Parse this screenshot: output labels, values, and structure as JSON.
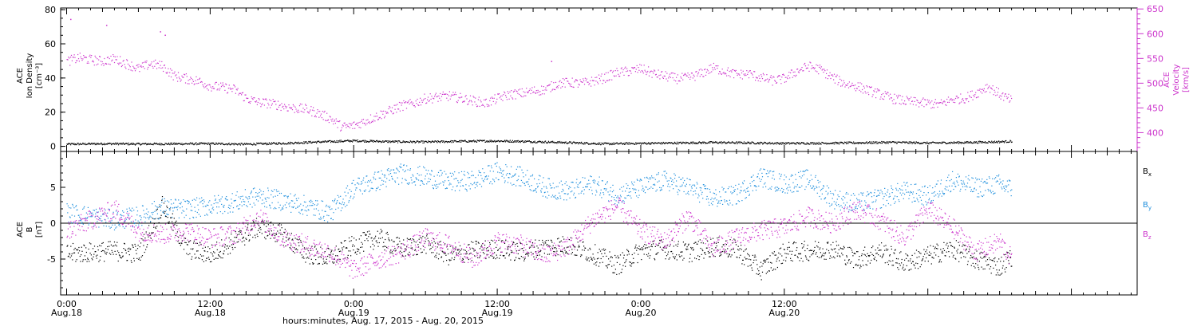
{
  "chart_data": [
    {
      "type": "scatter",
      "panel": "top",
      "left_axis": {
        "label_lines": [
          "ACE",
          "Ion Density",
          "[cm⁻³]"
        ],
        "ylim": [
          -3,
          81
        ],
        "ticks": [
          0,
          20,
          40,
          60,
          80
        ],
        "tick_labels": [
          "0",
          "20",
          "40",
          "60",
          "80"
        ],
        "color": "#000000"
      },
      "right_axis": {
        "label_lines": [
          "ACE",
          "Velocity",
          "[km/s]"
        ],
        "ylim": [
          362,
          652
        ],
        "ticks": [
          400,
          450,
          500,
          550,
          600,
          650
        ],
        "tick_labels": [
          "400",
          "450",
          "500",
          "550",
          "600",
          "650"
        ],
        "color": "#cc33cc"
      },
      "series": [
        {
          "name": "Ion Density",
          "axis": "left",
          "color": "#000000",
          "points": [
            [
              0,
              1.5
            ],
            [
              3,
              1.8
            ],
            [
              6,
              1.6
            ],
            [
              9,
              1.7
            ],
            [
              12,
              1.8
            ],
            [
              15,
              1.5
            ],
            [
              18,
              2.0
            ],
            [
              21,
              2.8
            ],
            [
              24,
              3.5
            ],
            [
              27,
              3.0
            ],
            [
              30,
              2.8
            ],
            [
              33,
              3.2
            ],
            [
              36,
              3.4
            ],
            [
              39,
              3.0
            ],
            [
              42,
              2.4
            ],
            [
              45,
              1.7
            ],
            [
              48,
              2.0
            ],
            [
              51,
              2.2
            ],
            [
              54,
              2.5
            ],
            [
              57,
              2.3
            ],
            [
              60,
              2.0
            ],
            [
              63,
              2.1
            ],
            [
              66,
              2.3
            ],
            [
              69,
              2.6
            ],
            [
              72,
              2.2
            ],
            [
              75,
              2.5
            ],
            [
              78,
              2.9
            ],
            [
              79,
              3.2
            ]
          ]
        },
        {
          "name": "Velocity",
          "axis": "right",
          "color": "#cc33cc",
          "points": [
            [
              0,
              545
            ],
            [
              1,
              552
            ],
            [
              2,
              548
            ],
            [
              3,
              545
            ],
            [
              4,
              550
            ],
            [
              5,
              540
            ],
            [
              6,
              530
            ],
            [
              7,
              540
            ],
            [
              8,
              535
            ],
            [
              9,
              515
            ],
            [
              10,
              510
            ],
            [
              11,
              505
            ],
            [
              12,
              495
            ],
            [
              13,
              492
            ],
            [
              14,
              488
            ],
            [
              15,
              470
            ],
            [
              16,
              462
            ],
            [
              17,
              460
            ],
            [
              18,
              455
            ],
            [
              19,
              450
            ],
            [
              20,
              448
            ],
            [
              21,
              440
            ],
            [
              22,
              430
            ],
            [
              23,
              412
            ],
            [
              24,
              415
            ],
            [
              25,
              425
            ],
            [
              26,
              435
            ],
            [
              27,
              445
            ],
            [
              28,
              455
            ],
            [
              29,
              460
            ],
            [
              30,
              470
            ],
            [
              31,
              472
            ],
            [
              32,
              475
            ],
            [
              33,
              470
            ],
            [
              34,
              465
            ],
            [
              35,
              460
            ],
            [
              36,
              470
            ],
            [
              37,
              478
            ],
            [
              38,
              480
            ],
            [
              39,
              485
            ],
            [
              40,
              488
            ],
            [
              41,
              500
            ],
            [
              42,
              502
            ],
            [
              43,
              500
            ],
            [
              44,
              505
            ],
            [
              45,
              512
            ],
            [
              46,
              522
            ],
            [
              47,
              525
            ],
            [
              48,
              530
            ],
            [
              49,
              520
            ],
            [
              50,
              515
            ],
            [
              51,
              510
            ],
            [
              52,
              512
            ],
            [
              53,
              520
            ],
            [
              54,
              532
            ],
            [
              55,
              525
            ],
            [
              56,
              518
            ],
            [
              57,
              520
            ],
            [
              58,
              512
            ],
            [
              59,
              506
            ],
            [
              60,
              510
            ],
            [
              61,
              525
            ],
            [
              62,
              535
            ],
            [
              63,
              528
            ],
            [
              64,
              512
            ],
            [
              65,
              500
            ],
            [
              66,
              495
            ],
            [
              67,
              486
            ],
            [
              68,
              478
            ],
            [
              69,
              470
            ],
            [
              70,
              465
            ],
            [
              71,
              462
            ],
            [
              72,
              460
            ],
            [
              73,
              458
            ],
            [
              74,
              468
            ],
            [
              75,
              470
            ],
            [
              76,
              480
            ],
            [
              77,
              495
            ],
            [
              78,
              478
            ],
            [
              79,
              465
            ]
          ],
          "spikes": [
            [
              0.3,
              630
            ],
            [
              3.3,
              618
            ],
            [
              7.8,
              605
            ],
            [
              8.2,
              598
            ],
            [
              40.5,
              545
            ]
          ]
        }
      ]
    },
    {
      "type": "scatter",
      "panel": "bottom",
      "axis": {
        "label_lines": [
          "ACE",
          "B",
          "[nT]"
        ],
        "ylim": [
          -10,
          10
        ],
        "ticks": [
          -5,
          0,
          5
        ],
        "tick_labels": [
          "-5",
          "0",
          "5"
        ],
        "color": "#000000"
      },
      "zero_line": 0,
      "series": [
        {
          "name": "B",
          "subscript": "x",
          "color": "#000000",
          "points": [
            [
              0,
              -4.2
            ],
            [
              2,
              -4.0
            ],
            [
              4,
              -3.8
            ],
            [
              6,
              -4.2
            ],
            [
              8,
              2.5
            ],
            [
              10,
              -3.5
            ],
            [
              12,
              -4.3
            ],
            [
              14,
              -2.5
            ],
            [
              16,
              -0.5
            ],
            [
              18,
              -1.5
            ],
            [
              20,
              -4.2
            ],
            [
              22,
              -4.8
            ],
            [
              24,
              -3.0
            ],
            [
              26,
              -2.0
            ],
            [
              28,
              -3.5
            ],
            [
              30,
              -2.8
            ],
            [
              32,
              -4.5
            ],
            [
              34,
              -3.8
            ],
            [
              36,
              -3.5
            ],
            [
              38,
              -4.0
            ],
            [
              40,
              -3.2
            ],
            [
              42,
              -3.0
            ],
            [
              44,
              -4.2
            ],
            [
              46,
              -5.8
            ],
            [
              48,
              -3.8
            ],
            [
              50,
              -3.5
            ],
            [
              52,
              -4.0
            ],
            [
              54,
              -3.2
            ],
            [
              56,
              -3.6
            ],
            [
              58,
              -6.5
            ],
            [
              60,
              -4.0
            ],
            [
              62,
              -3.8
            ],
            [
              64,
              -3.5
            ],
            [
              66,
              -5.0
            ],
            [
              68,
              -3.8
            ],
            [
              70,
              -5.5
            ],
            [
              72,
              -4.5
            ],
            [
              74,
              -3.5
            ],
            [
              76,
              -5.0
            ],
            [
              78,
              -6.0
            ],
            [
              79,
              -4.5
            ]
          ]
        },
        {
          "name": "B",
          "subscript": "y",
          "color": "#1f8fdd",
          "points": [
            [
              0,
              1.5
            ],
            [
              2,
              1.0
            ],
            [
              4,
              0.5
            ],
            [
              6,
              1.0
            ],
            [
              8,
              2.2
            ],
            [
              10,
              2.0
            ],
            [
              12,
              2.5
            ],
            [
              14,
              3.0
            ],
            [
              16,
              3.8
            ],
            [
              18,
              3.2
            ],
            [
              20,
              2.5
            ],
            [
              22,
              1.5
            ],
            [
              24,
              5.0
            ],
            [
              26,
              6.0
            ],
            [
              28,
              7.0
            ],
            [
              30,
              6.5
            ],
            [
              32,
              5.8
            ],
            [
              34,
              6.0
            ],
            [
              36,
              7.2
            ],
            [
              38,
              6.5
            ],
            [
              40,
              5.0
            ],
            [
              42,
              4.5
            ],
            [
              44,
              5.5
            ],
            [
              46,
              4.0
            ],
            [
              48,
              5.0
            ],
            [
              50,
              6.0
            ],
            [
              52,
              5.0
            ],
            [
              54,
              3.5
            ],
            [
              56,
              4.0
            ],
            [
              58,
              6.5
            ],
            [
              60,
              5.5
            ],
            [
              62,
              6.2
            ],
            [
              64,
              3.5
            ],
            [
              66,
              2.8
            ],
            [
              68,
              3.5
            ],
            [
              70,
              4.5
            ],
            [
              72,
              3.8
            ],
            [
              74,
              6.0
            ],
            [
              76,
              5.0
            ],
            [
              78,
              5.5
            ],
            [
              79,
              4.8
            ]
          ]
        },
        {
          "name": "B",
          "subscript": "z",
          "color": "#cc33cc",
          "points": [
            [
              0,
              -1.0
            ],
            [
              2,
              0.5
            ],
            [
              4,
              2.0
            ],
            [
              6,
              -1.0
            ],
            [
              8,
              -1.5
            ],
            [
              10,
              -1.0
            ],
            [
              12,
              -2.0
            ],
            [
              14,
              -1.5
            ],
            [
              16,
              1.0
            ],
            [
              18,
              -2.0
            ],
            [
              20,
              -3.0
            ],
            [
              22,
              -4.0
            ],
            [
              24,
              -6.5
            ],
            [
              26,
              -5.0
            ],
            [
              28,
              -4.0
            ],
            [
              30,
              -2.0
            ],
            [
              32,
              -3.0
            ],
            [
              34,
              -5.0
            ],
            [
              36,
              -2.5
            ],
            [
              38,
              -3.0
            ],
            [
              40,
              -4.5
            ],
            [
              42,
              -3.0
            ],
            [
              44,
              0.5
            ],
            [
              46,
              2.5
            ],
            [
              48,
              -1.0
            ],
            [
              50,
              -2.5
            ],
            [
              52,
              1.0
            ],
            [
              54,
              -3.5
            ],
            [
              56,
              -2.0
            ],
            [
              58,
              -1.0
            ],
            [
              60,
              -0.5
            ],
            [
              62,
              1.0
            ],
            [
              64,
              0.0
            ],
            [
              66,
              2.0
            ],
            [
              68,
              0.5
            ],
            [
              70,
              -2.0
            ],
            [
              72,
              2.0
            ],
            [
              74,
              -0.5
            ],
            [
              76,
              -4.0
            ],
            [
              78,
              -2.5
            ],
            [
              79,
              -5.0
            ]
          ]
        }
      ],
      "legend": {
        "placement": "right",
        "entries": [
          {
            "base": "B",
            "sub": "x",
            "color": "#000000"
          },
          {
            "base": "B",
            "sub": "y",
            "color": "#1f8fdd"
          },
          {
            "base": "B",
            "sub": "z",
            "color": "#cc33cc"
          }
        ]
      }
    }
  ],
  "x_axis": {
    "range_hours": [
      -0.5,
      89.5
    ],
    "ticks": [
      {
        "hour": 0,
        "time": "0:00",
        "date": "Aug.18"
      },
      {
        "hour": 12,
        "time": "12:00",
        "date": "Aug.18"
      },
      {
        "hour": 24,
        "time": "0:00",
        "date": "Aug.19"
      },
      {
        "hour": 36,
        "time": "12:00",
        "date": "Aug.19"
      },
      {
        "hour": 48,
        "time": "0:00",
        "date": "Aug.20"
      },
      {
        "hour": 60,
        "time": "12:00",
        "date": "Aug.20"
      }
    ],
    "title": "hours:minutes, Aug. 17, 2015 - Aug. 20, 2015"
  },
  "colors": {
    "frame": "#000000",
    "density": "#000000",
    "velocity": "#cc33cc",
    "bx": "#000000",
    "by": "#1f8fdd",
    "bz": "#cc33cc"
  }
}
